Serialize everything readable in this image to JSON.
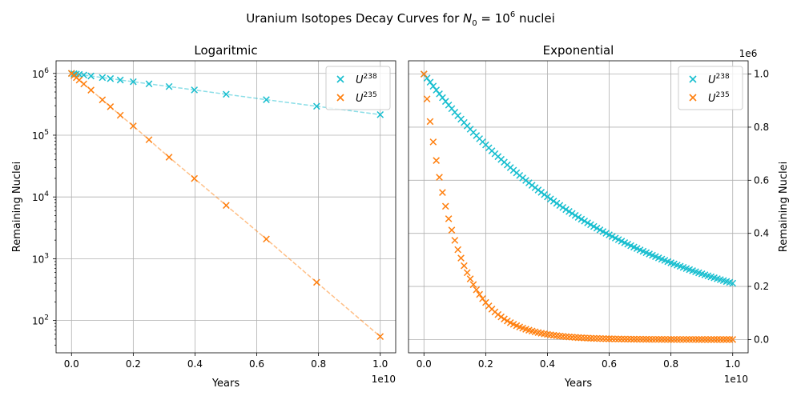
{
  "figure": {
    "suptitle_prefix": "Uranium Isotopes Decay Curves for ",
    "suptitle_n": "N",
    "suptitle_n_sub": "0",
    "suptitle_eq": " = 10",
    "suptitle_exp": "6",
    "suptitle_suffix": " nuclei"
  },
  "colors": {
    "u238": "#17becf",
    "u235": "#ff7f0e"
  },
  "chart_data": [
    {
      "type": "scatter",
      "title": "Logaritmic",
      "xlabel": "Years",
      "ylabel": "Remaining Nuclei",
      "x_offset_label": "1e10",
      "yscale": "log",
      "xlim": [
        -500000000.0,
        10500000000.0
      ],
      "ylim": [
        30,
        1600000.0
      ],
      "xticks": [
        0,
        2000000000.0,
        4000000000.0,
        6000000000.0,
        8000000000.0,
        10000000000.0
      ],
      "xtick_labels": [
        "0.0",
        "0.2",
        "0.4",
        "0.6",
        "0.8",
        "1.0"
      ],
      "yticks": [
        100,
        1000,
        10000,
        100000,
        1000000
      ],
      "ytick_base": "10",
      "ytick_exps": [
        "2",
        "3",
        "4",
        "5",
        "6"
      ],
      "grid": true,
      "legend_position": "top-right",
      "x": [
        0,
        79400000.0,
        158000000.0,
        251000000.0,
        398000000.0,
        631000000.0,
        1000000000.0,
        1260000000.0,
        1580000000.0,
        2000000000.0,
        2510000000.0,
        3160000000.0,
        3980000000.0,
        5010000000.0,
        6310000000.0,
        7940000000.0,
        10000000000.0
      ],
      "series": [
        {
          "name_base": "U",
          "name_sup": "238",
          "color": "#17becf",
          "values": [
            1000000,
            987800,
            975900,
            961800,
            941400,
            907800,
            857400,
            823800,
            781800,
            733600,
            677500,
            612700,
            540000,
            459400,
            375500,
            293800,
            215000
          ]
        },
        {
          "name_base": "U",
          "name_sup": "235",
          "color": "#ff7f0e",
          "values": [
            1000000,
            924900,
            855200,
            780600,
            675400,
            537000,
            373700,
            289100,
            210200,
            140900,
            84300,
            44000,
            19900,
            7300,
            2080,
            415,
            55
          ]
        }
      ]
    },
    {
      "type": "scatter",
      "title": "Exponential",
      "xlabel": "Years",
      "ylabel": "Remaining Nuclei",
      "x_offset_label": "1e10",
      "y_offset_label": "1e6",
      "yscale": "linear",
      "xlim": [
        -500000000.0,
        10500000000.0
      ],
      "ylim": [
        -50000,
        1050000
      ],
      "xticks": [
        0,
        2000000000.0,
        4000000000.0,
        6000000000.0,
        8000000000.0,
        10000000000.0
      ],
      "xtick_labels": [
        "0.0",
        "0.2",
        "0.4",
        "0.6",
        "0.8",
        "1.0"
      ],
      "yticks": [
        0,
        200000,
        400000,
        600000,
        800000,
        1000000
      ],
      "ytick_labels": [
        "0.0",
        "0.2",
        "0.4",
        "0.6",
        "0.8",
        "1.0"
      ],
      "grid": true,
      "legend_position": "top-right",
      "x_range": [
        0,
        10000000000.0
      ],
      "n_points": 101,
      "series": [
        {
          "name_base": "U",
          "name_sup": "238",
          "color": "#17becf",
          "half_life_years": 4468000000.0,
          "initial": 1000000
        },
        {
          "name_base": "U",
          "name_sup": "235",
          "color": "#ff7f0e",
          "half_life_years": 704000000.0,
          "initial": 1000000
        }
      ]
    }
  ]
}
